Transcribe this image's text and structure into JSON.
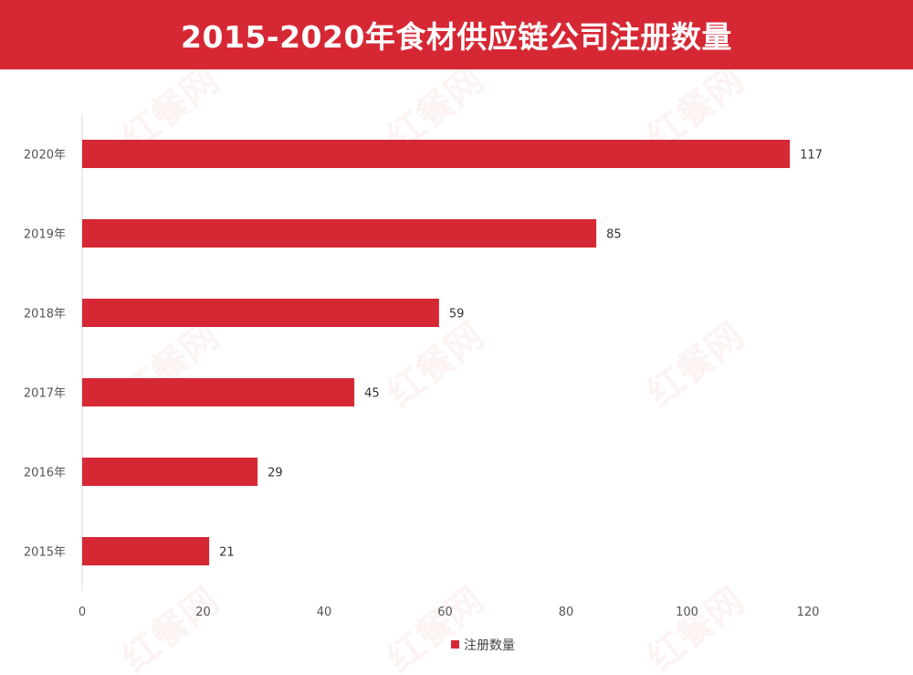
{
  "chart_data": {
    "type": "bar",
    "orientation": "horizontal",
    "title": "2015-2020年食材供应链公司注册数量",
    "categories": [
      "2020年",
      "2019年",
      "2018年",
      "2017年",
      "2016年",
      "2015年"
    ],
    "series": [
      {
        "name": "注册数量",
        "values": [
          117,
          85,
          59,
          45,
          29,
          21
        ]
      }
    ],
    "xlim": [
      0,
      130
    ],
    "xticks": [
      0,
      20,
      40,
      60,
      80,
      100,
      120
    ],
    "grid": false,
    "legend_position": "bottom",
    "data_labels": true
  },
  "watermark": "红餐网",
  "colors": {
    "bar": "#d62834",
    "banner": "#d62834",
    "axis": "#d9d9d9"
  }
}
